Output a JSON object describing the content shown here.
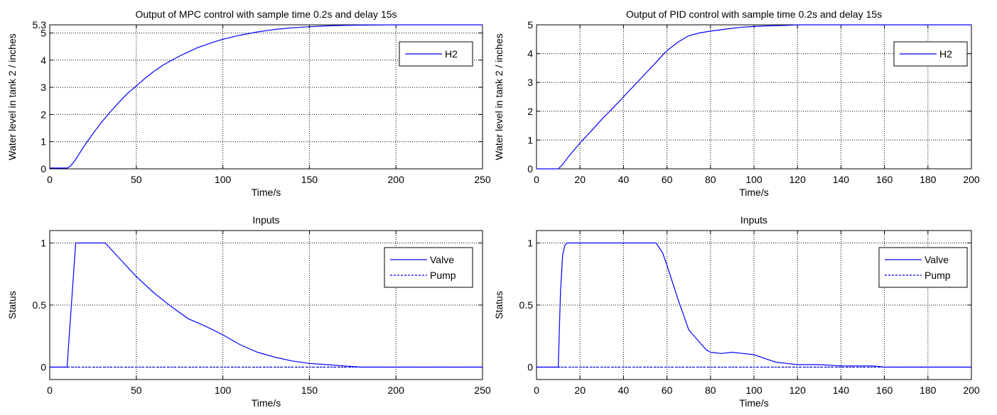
{
  "chart_data": [
    {
      "type": "line",
      "title": "Output of MPC control with sample time 0.2s and delay 15s",
      "xlabel": "Time/s",
      "ylabel": "Water level in tank 2 / inches",
      "xlim": [
        0,
        250
      ],
      "ylim": [
        0,
        5.3
      ],
      "xticks": [
        0,
        50,
        100,
        150,
        200,
        250
      ],
      "yticks": [
        0,
        1,
        2,
        3,
        4,
        5,
        5.3
      ],
      "ytick_labels": [
        "0",
        "1",
        "2",
        "3",
        "4",
        "5",
        "5.3"
      ],
      "grid": true,
      "legend": "top-right",
      "series": [
        {
          "name": "H2",
          "color": "#0000ff",
          "style": "solid",
          "x": [
            0,
            10,
            12,
            15,
            20,
            25,
            30,
            35,
            40,
            45,
            50,
            55,
            60,
            65,
            70,
            75,
            80,
            85,
            90,
            95,
            100,
            110,
            120,
            130,
            140,
            150,
            160,
            170,
            180,
            200,
            225,
            250
          ],
          "y": [
            0.03,
            0.03,
            0.1,
            0.35,
            0.85,
            1.3,
            1.72,
            2.1,
            2.45,
            2.78,
            3.05,
            3.33,
            3.58,
            3.8,
            3.98,
            4.15,
            4.3,
            4.45,
            4.56,
            4.67,
            4.77,
            4.92,
            5.04,
            5.13,
            5.19,
            5.23,
            5.26,
            5.28,
            5.29,
            5.3,
            5.3,
            5.3
          ]
        }
      ]
    },
    {
      "type": "line",
      "title": "Output of PID control with sample time 0.2s and delay 15s",
      "xlabel": "Time/s",
      "ylabel": "Water level in tank 2 / inches",
      "xlim": [
        0,
        200
      ],
      "ylim": [
        0,
        5
      ],
      "xticks": [
        0,
        20,
        40,
        60,
        80,
        100,
        120,
        140,
        160,
        180,
        200
      ],
      "yticks": [
        0,
        1,
        2,
        3,
        4,
        5
      ],
      "ytick_labels": [
        "0",
        "1",
        "2",
        "3",
        "4",
        "5"
      ],
      "grid": true,
      "legend": "top-right",
      "series": [
        {
          "name": "H2",
          "color": "#0000ff",
          "style": "solid",
          "x": [
            0,
            10,
            12,
            15,
            20,
            25,
            30,
            35,
            40,
            45,
            50,
            55,
            58,
            60,
            65,
            70,
            75,
            80,
            85,
            90,
            95,
            100,
            105,
            110,
            115,
            120,
            140,
            160,
            180,
            200
          ],
          "y": [
            0,
            0,
            0.15,
            0.45,
            0.9,
            1.3,
            1.72,
            2.1,
            2.5,
            2.9,
            3.3,
            3.7,
            3.95,
            4.1,
            4.4,
            4.62,
            4.72,
            4.78,
            4.83,
            4.88,
            4.92,
            4.94,
            4.96,
            4.97,
            4.98,
            5,
            5,
            5,
            5,
            5
          ]
        }
      ]
    },
    {
      "type": "line",
      "title": "Inputs",
      "xlabel": "Time/s",
      "ylabel": "Status",
      "xlim": [
        0,
        250
      ],
      "ylim": [
        -0.1,
        1.1
      ],
      "xticks": [
        0,
        50,
        100,
        150,
        200,
        250
      ],
      "yticks": [
        0,
        0.5,
        1
      ],
      "ytick_labels": [
        "0",
        "0.5",
        "1"
      ],
      "grid": true,
      "legend": "top-right",
      "series": [
        {
          "name": "Valve",
          "color": "#0000ff",
          "style": "solid",
          "x": [
            0,
            10,
            15,
            32,
            40,
            50,
            60,
            70,
            80,
            90,
            100,
            110,
            120,
            130,
            140,
            150,
            160,
            170,
            180,
            200,
            250
          ],
          "y": [
            0,
            0,
            1,
            1,
            0.88,
            0.73,
            0.6,
            0.49,
            0.39,
            0.33,
            0.26,
            0.18,
            0.12,
            0.08,
            0.05,
            0.03,
            0.02,
            0.01,
            0,
            0,
            0
          ]
        },
        {
          "name": "Pump",
          "color": "#0000ff",
          "style": "dashed",
          "x": [
            0,
            250
          ],
          "y": [
            0,
            0
          ]
        }
      ]
    },
    {
      "type": "line",
      "title": "Inputs",
      "xlabel": "Time/s",
      "ylabel": "Status",
      "xlim": [
        0,
        200
      ],
      "ylim": [
        -0.1,
        1.1
      ],
      "xticks": [
        0,
        20,
        40,
        60,
        80,
        100,
        120,
        140,
        160,
        180,
        200
      ],
      "yticks": [
        0,
        0.5,
        1
      ],
      "ytick_labels": [
        "0",
        "0.5",
        "1"
      ],
      "grid": true,
      "legend": "top-right",
      "series": [
        {
          "name": "Valve",
          "color": "#0000ff",
          "style": "solid",
          "x": [
            0,
            10,
            11,
            12,
            13,
            14,
            15,
            55,
            58,
            60,
            65,
            70,
            75,
            78,
            80,
            85,
            90,
            95,
            100,
            105,
            110,
            115,
            120,
            130,
            140,
            150,
            155,
            160,
            200
          ],
          "y": [
            0,
            0,
            0.6,
            0.9,
            0.98,
            1,
            1,
            1,
            0.92,
            0.82,
            0.55,
            0.3,
            0.2,
            0.14,
            0.12,
            0.11,
            0.12,
            0.11,
            0.1,
            0.07,
            0.04,
            0.03,
            0.02,
            0.02,
            0.01,
            0.01,
            0.01,
            0,
            0
          ]
        },
        {
          "name": "Pump",
          "color": "#0000ff",
          "style": "dashed",
          "x": [
            0,
            200
          ],
          "y": [
            0,
            0
          ]
        }
      ]
    }
  ]
}
